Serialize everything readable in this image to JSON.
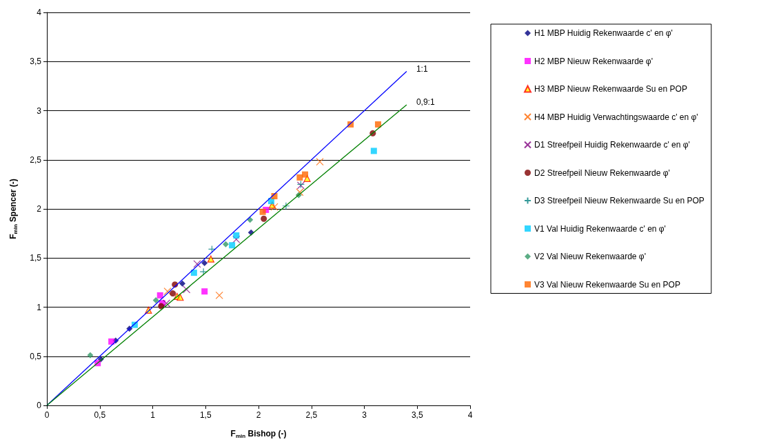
{
  "chart_data": {
    "type": "scatter",
    "xlabel": "F$_{min}$ Bishop (-)",
    "ylabel": "F$_{min}$ Spencer (-)",
    "xlim": [
      0,
      4
    ],
    "ylim": [
      0,
      4
    ],
    "xticks": [
      0,
      {
        "value": 0.5,
        "label": "0,5"
      },
      1,
      {
        "value": 1.5,
        "label": "1,5"
      },
      2,
      {
        "value": 2.5,
        "label": "2,5"
      },
      3,
      {
        "value": 3.5,
        "label": "3,5"
      },
      4
    ],
    "yticks": [
      0,
      {
        "value": 0.5,
        "label": "0,5"
      },
      1,
      {
        "value": 1.5,
        "label": "1,5"
      },
      2,
      {
        "value": 2.5,
        "label": "2,5"
      },
      3,
      {
        "value": 3.5,
        "label": "3,5"
      },
      4
    ],
    "grid": "y",
    "legend": "right",
    "series": [
      {
        "name": "H1 MBP Huidig Rekenwaarde c' en φ'",
        "color": "#000080",
        "marker": "diamond",
        "x": [
          0.51,
          0.65,
          0.78,
          1.28,
          1.49,
          1.93
        ],
        "values": [
          0.47,
          0.66,
          0.78,
          1.24,
          1.45,
          1.76
        ]
      },
      {
        "name": "H2 MBP Nieuw Rekenwaarde φ'",
        "color": "#ff00ff",
        "marker": "square",
        "x": [
          0.48,
          0.61,
          1.07,
          1.09,
          1.49,
          2.07
        ],
        "values": [
          0.43,
          0.65,
          1.12,
          1.04,
          1.16,
          1.99
        ]
      },
      {
        "name": "H3 MBP Nieuw Rekenwaarde Su en POP",
        "color": "#ffff00",
        "marker": "triangle",
        "x": [
          0.96,
          1.23,
          1.26,
          1.55,
          2.13,
          2.46
        ],
        "values": [
          0.97,
          1.11,
          1.1,
          1.49,
          2.04,
          2.31
        ]
      },
      {
        "name": "H4 MBP Huidig Verwachtingswaarde c' en φ'",
        "color": "#ff6600",
        "marker": "cross",
        "x": [
          1.14,
          1.63,
          2.15,
          2.39,
          2.58
        ],
        "values": [
          1.16,
          1.12,
          2.02,
          2.17,
          2.48
        ]
      },
      {
        "name": "D1 Streefpeil Huidig Rekenwaarde c' en φ'",
        "color": "#800080",
        "marker": "cross",
        "x": [
          1.13,
          1.32,
          1.42,
          1.79,
          2.4
        ],
        "values": [
          1.04,
          1.18,
          1.44,
          1.69,
          2.24
        ]
      },
      {
        "name": "D2 Streefpeil Nieuw Rekenwaarde φ'",
        "color": "#800000",
        "marker": "circle",
        "x": [
          1.08,
          1.19,
          1.21,
          2.05,
          3.08
        ],
        "values": [
          1.01,
          1.14,
          1.23,
          1.9,
          2.77
        ]
      },
      {
        "name": "D3 Streefpeil Nieuw Rekenwaarde Su en POP",
        "color": "#008080",
        "marker": "plus",
        "x": [
          1.48,
          1.56,
          2.26,
          2.4
        ],
        "values": [
          1.36,
          1.59,
          2.03,
          2.25
        ]
      },
      {
        "name": "V1 Val Huidig Rekenwaarde c' en φ'",
        "color": "#00ccff",
        "marker": "square",
        "x": [
          0.83,
          1.39,
          1.75,
          1.79,
          2.12,
          3.09
        ],
        "values": [
          0.82,
          1.35,
          1.63,
          1.73,
          2.08,
          2.59
        ]
      },
      {
        "name": "V2 Val Nieuw Rekenwaarde φ'",
        "color": "#339966",
        "marker": "diamond",
        "x": [
          0.41,
          1.03,
          1.69,
          1.92,
          2.03,
          2.38
        ],
        "values": [
          0.51,
          1.07,
          1.64,
          1.89,
          null,
          2.14
        ]
      },
      {
        "name": "V3 Val Nieuw Rekenwaarde Su en POP",
        "color": "#ff6600",
        "marker": "square",
        "x": [
          2.04,
          2.15,
          2.39,
          2.44,
          2.87,
          3.13
        ],
        "values": [
          1.97,
          2.13,
          2.32,
          2.35,
          2.86,
          2.86
        ]
      },
      {
        "name": "1:1",
        "type": "line",
        "color": "#0000ff",
        "marker": "none",
        "x": [
          0,
          3.4
        ],
        "values": [
          0,
          3.4
        ]
      },
      {
        "name": "0,9:1",
        "type": "line",
        "color": "#008000",
        "marker": "none",
        "x": [
          0,
          3.4
        ],
        "values": [
          0,
          3.06
        ]
      }
    ]
  }
}
